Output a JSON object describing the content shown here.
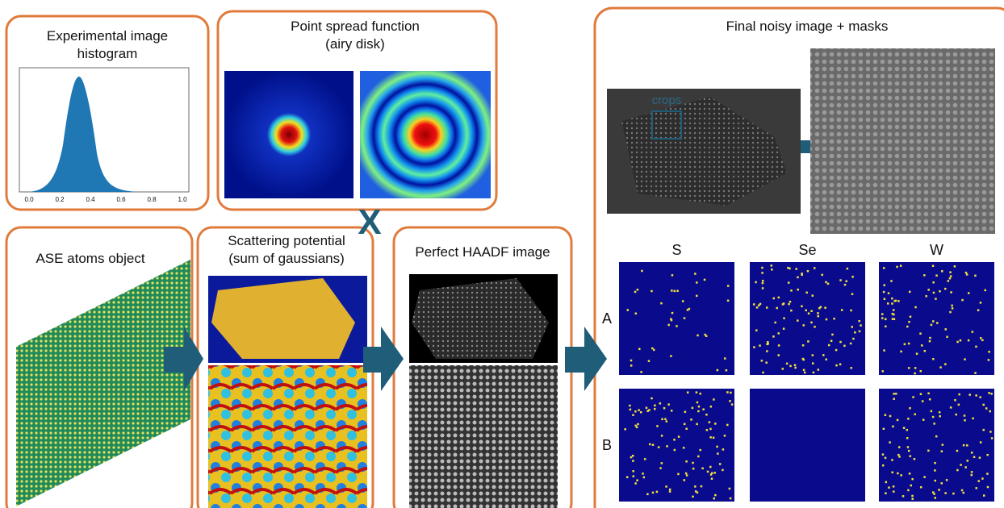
{
  "histogram": {
    "title": [
      "Experimental image",
      "histogram"
    ],
    "ticks": [
      "0.0",
      "0.2",
      "0.4",
      "0.6",
      "0.8",
      "1.0"
    ]
  },
  "psf": {
    "title": [
      "Point spread function",
      "(airy disk)"
    ]
  },
  "operator": "X",
  "ase": {
    "title": "ASE atoms object"
  },
  "scattering": {
    "title": [
      "Scattering potential",
      "(sum of gaussians)"
    ]
  },
  "haadf": {
    "title": "Perfect HAADF image"
  },
  "final": {
    "title": "Final noisy image + masks",
    "crop_label": "crops",
    "columns": [
      "S",
      "Se",
      "W"
    ],
    "rows": [
      "A",
      "B"
    ]
  }
}
